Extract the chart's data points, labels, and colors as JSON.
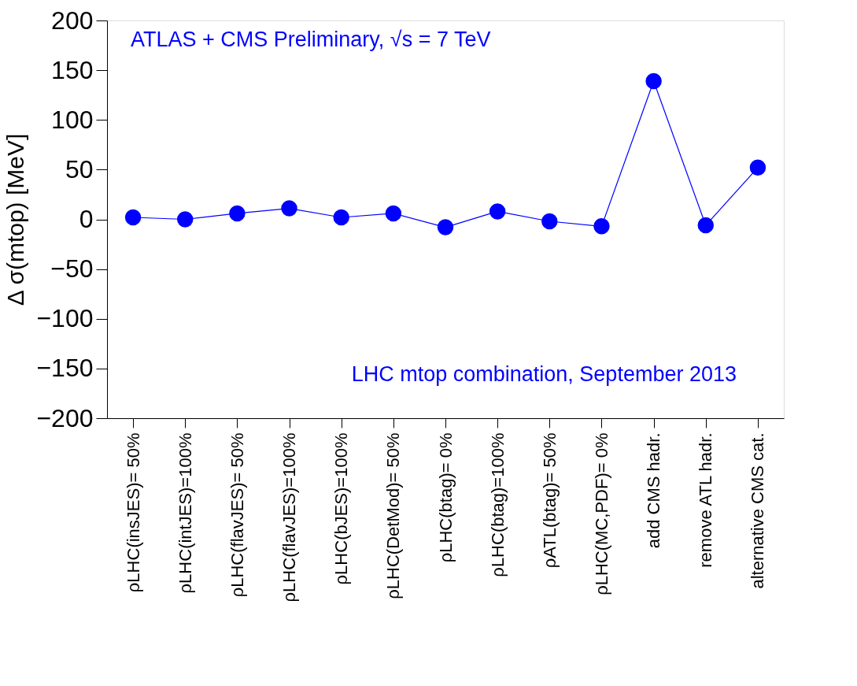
{
  "chart_data": {
    "type": "line",
    "ylabel": "Δ σ(mtop) [MeV]",
    "categories": [
      "ρLHC(insJES)= 50%",
      "ρLHC(intJES)=100%",
      "ρLHC(flavJES)= 50%",
      "ρLHC(flavJES)=100%",
      "ρLHC(bJES)=100%",
      "ρLHC(DetMod)= 50%",
      "ρLHC(btag)= 0%",
      "ρLHC(btag)=100%",
      "ρATL(btag)= 50%",
      "ρLHC(MC,PDF)= 0%",
      "add CMS hadr.",
      "remove ATL hadr.",
      "alternative CMS cat."
    ],
    "series": [
      {
        "color": "#0000ff",
        "values": [
          2,
          0,
          6,
          11,
          2,
          6,
          -8,
          8,
          -2,
          -7,
          139,
          -6,
          52
        ]
      }
    ],
    "ylim": [
      -200,
      200
    ],
    "yticks": [
      -200,
      -150,
      -100,
      -50,
      0,
      50,
      100,
      150,
      200
    ],
    "marker": "circle",
    "line_style": "solid",
    "grid": false,
    "annotations": [
      "ATLAS + CMS Preliminary, √s = 7 TeV",
      "LHC mtop combination, September 2013"
    ]
  }
}
